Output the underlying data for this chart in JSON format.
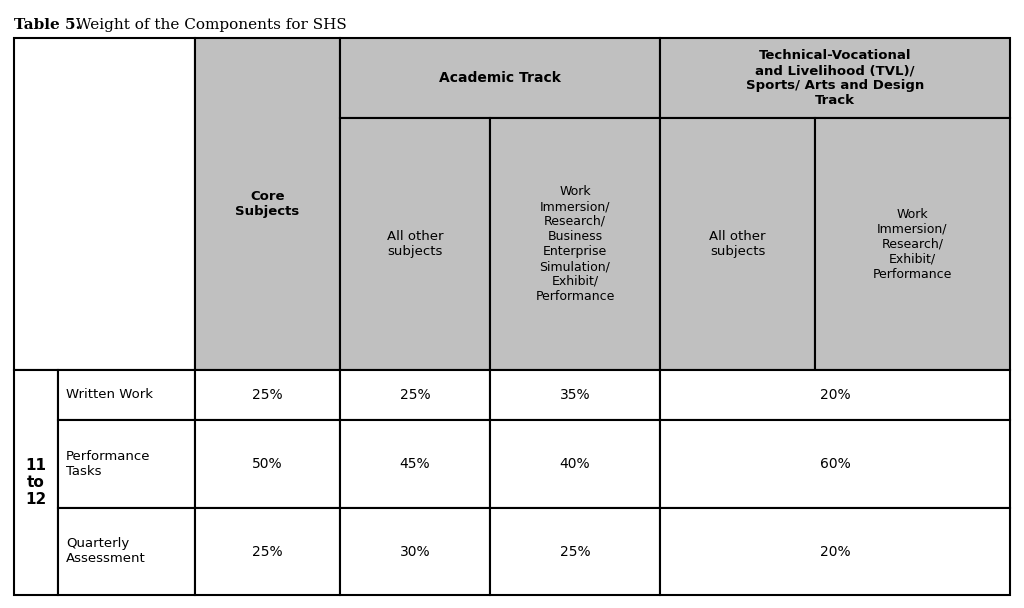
{
  "title_bold": "Table 5.",
  "title_normal": " Weight of the Components for SHS",
  "background_color": "#ffffff",
  "header_bg_color": "#c0c0c0",
  "data_bg_color": "#ffffff",
  "col_header_core": "Core\nSubjects",
  "col_header_academic": "Academic Track",
  "col_header_tvl": "Technical-Vocational\nand Livelihood (TVL)/\nSports/ Arts and Design\nTrack",
  "col_header_acad_all": "All other\nsubjects",
  "col_header_acad_work": "Work\nImmersion/\nResearch/\nBusiness\nEnterprise\nSimulation/\nExhibit/\nPerformance",
  "col_header_tvl_all": "All other\nsubjects",
  "col_header_tvl_work": "Work\nImmersion/\nResearch/\nExhibit/\nPerformance",
  "grade_label": "11\nto\n12",
  "row_labels": [
    "Written Work",
    "Performance\nTasks",
    "Quarterly\nAssessment"
  ],
  "data": [
    [
      "25%",
      "25%",
      "35%",
      "20%"
    ],
    [
      "50%",
      "45%",
      "40%",
      "60%"
    ],
    [
      "25%",
      "30%",
      "25%",
      "20%"
    ]
  ]
}
